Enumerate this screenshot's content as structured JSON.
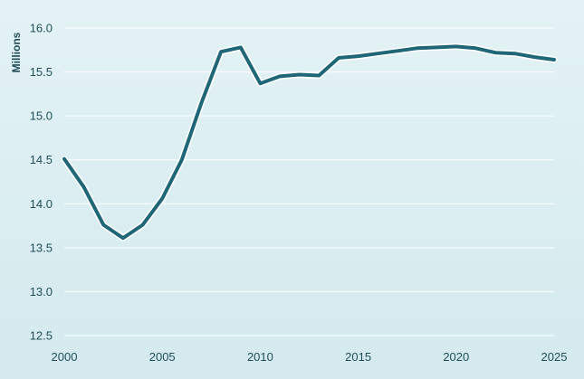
{
  "chart_data": {
    "type": "line",
    "title": "",
    "xlabel": "",
    "ylabel": "Millions",
    "xlim": [
      2000,
      2025
    ],
    "ylim": [
      12.5,
      16.0
    ],
    "grid": true,
    "x_ticks": [
      "2000",
      "2005",
      "2010",
      "2015",
      "2020",
      "2025"
    ],
    "y_ticks": [
      "12.5",
      "13.0",
      "13.5",
      "14.0",
      "14.5",
      "15.0",
      "15.5",
      "16.0"
    ],
    "colors": {
      "line": "#1f6677",
      "outline": "#ffffff"
    },
    "series": [
      {
        "x": [
          2000,
          2001,
          2002,
          2003,
          2004,
          2005,
          2006,
          2007,
          2008,
          2009,
          2010,
          2011,
          2012,
          2013,
          2014,
          2015,
          2016,
          2017,
          2018,
          2019,
          2020,
          2021,
          2022,
          2023,
          2024,
          2025
        ],
        "values": [
          14.51,
          14.19,
          13.76,
          13.61,
          13.76,
          14.06,
          14.5,
          15.15,
          15.73,
          15.78,
          15.37,
          15.45,
          15.47,
          15.46,
          15.66,
          15.68,
          15.71,
          15.74,
          15.77,
          15.78,
          15.79,
          15.77,
          15.72,
          15.71,
          15.67,
          15.64
        ]
      }
    ]
  }
}
